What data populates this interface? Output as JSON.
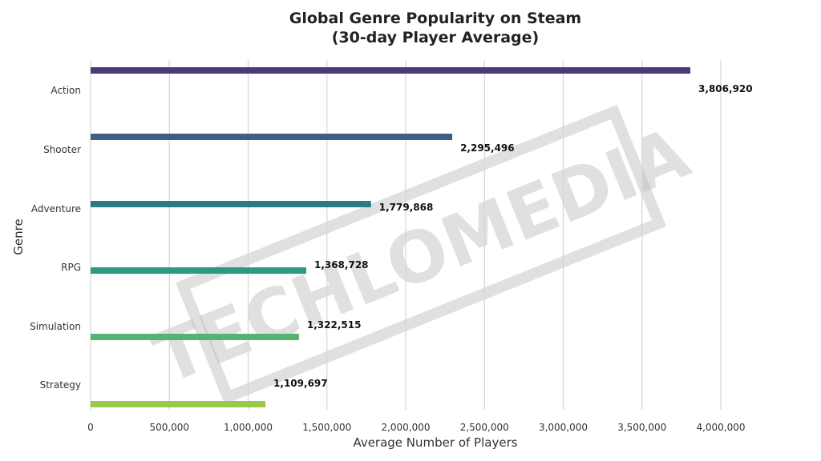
{
  "chart_data": {
    "type": "bar",
    "orientation": "horizontal",
    "title": "Global Genre Popularity on Steam\n(30-day Player Average)",
    "xlabel": "Average Number of Players",
    "ylabel": "Genre",
    "categories": [
      "Action",
      "Shooter",
      "Adventure",
      "RPG",
      "Simulation",
      "Strategy"
    ],
    "values": [
      3806920,
      2295496,
      1779868,
      1368728,
      1322515,
      1109697
    ],
    "data_labels": [
      "3,806,920",
      "2,295,496",
      "1,779,868",
      "1,368,728",
      "1,322,515",
      "1,109,697"
    ],
    "xlim": [
      0,
      4000000
    ],
    "xticks": [
      0,
      500000,
      1000000,
      1500000,
      2000000,
      2500000,
      3000000,
      3500000,
      4000000
    ],
    "xtick_labels": [
      "0",
      "500,000",
      "1,000,000",
      "1,500,000",
      "2,000,000",
      "2,500,000",
      "3,000,000",
      "3,500,000",
      "4,000,000"
    ],
    "grid": "vertical",
    "colors": [
      "#4a3a78",
      "#3f5e87",
      "#2e7a82",
      "#2a9a82",
      "#56b36f",
      "#9ac84a"
    ]
  },
  "watermark": "TECHLOMEDIA"
}
